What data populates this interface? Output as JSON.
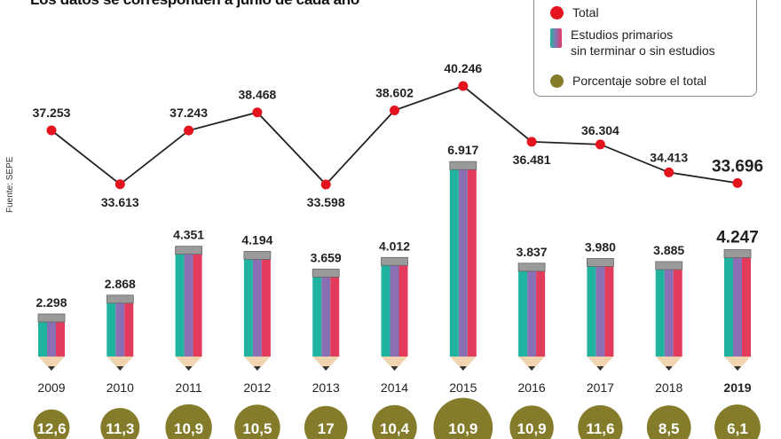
{
  "subtitle": "Los datos se corresponden a junio de cada año",
  "source": "Fuente: SEPE",
  "legend": {
    "total": "Total",
    "primary_line1": "Estudios primarios",
    "primary_line2": "sin terminar o sin estudios",
    "percent": "Porcentaje sobre el total"
  },
  "colors": {
    "total": "#e3141e",
    "line": "#222222",
    "circle": "#857c2b",
    "pencil": [
      "#1fb3a0",
      "#8a6fb5",
      "#e33b5c"
    ]
  },
  "chart_data": {
    "type": "bar+line",
    "categories": [
      "2009",
      "2010",
      "2011",
      "2012",
      "2013",
      "2014",
      "2015",
      "2016",
      "2017",
      "2018",
      "2019"
    ],
    "series": [
      {
        "name": "Total",
        "type": "line",
        "values": [
          37253,
          33613,
          37243,
          38468,
          33598,
          38602,
          40246,
          36481,
          36304,
          34413,
          33696
        ],
        "labels": [
          "37.253",
          "33.613",
          "37.243",
          "38.468",
          "33.598",
          "38.602",
          "40.246",
          "36.481",
          "36.304",
          "34.413",
          "33.696"
        ]
      },
      {
        "name": "Estudios primarios sin terminar o sin estudios",
        "type": "bar",
        "values": [
          2298,
          2868,
          4351,
          4194,
          3659,
          4012,
          6917,
          3837,
          3980,
          3885,
          4247
        ],
        "labels": [
          "2.298",
          "2.868",
          "4.351",
          "4.194",
          "3.659",
          "4.012",
          "6.917",
          "3.837",
          "3.980",
          "3.885",
          "4.247"
        ]
      },
      {
        "name": "Porcentaje sobre el total",
        "type": "bubble",
        "values": [
          12.6,
          11.3,
          10.9,
          10.5,
          17,
          10.4,
          10.9,
          10.9,
          11.6,
          8.5,
          6.1
        ],
        "labels": [
          "12,6",
          "11,3",
          "10,9",
          "10,5",
          "17",
          "10,4",
          "10,9",
          "10,9",
          "11,6",
          "8,5",
          "6,1"
        ]
      }
    ],
    "highlight": "2019",
    "grid": false,
    "legend_position": "top-right"
  }
}
